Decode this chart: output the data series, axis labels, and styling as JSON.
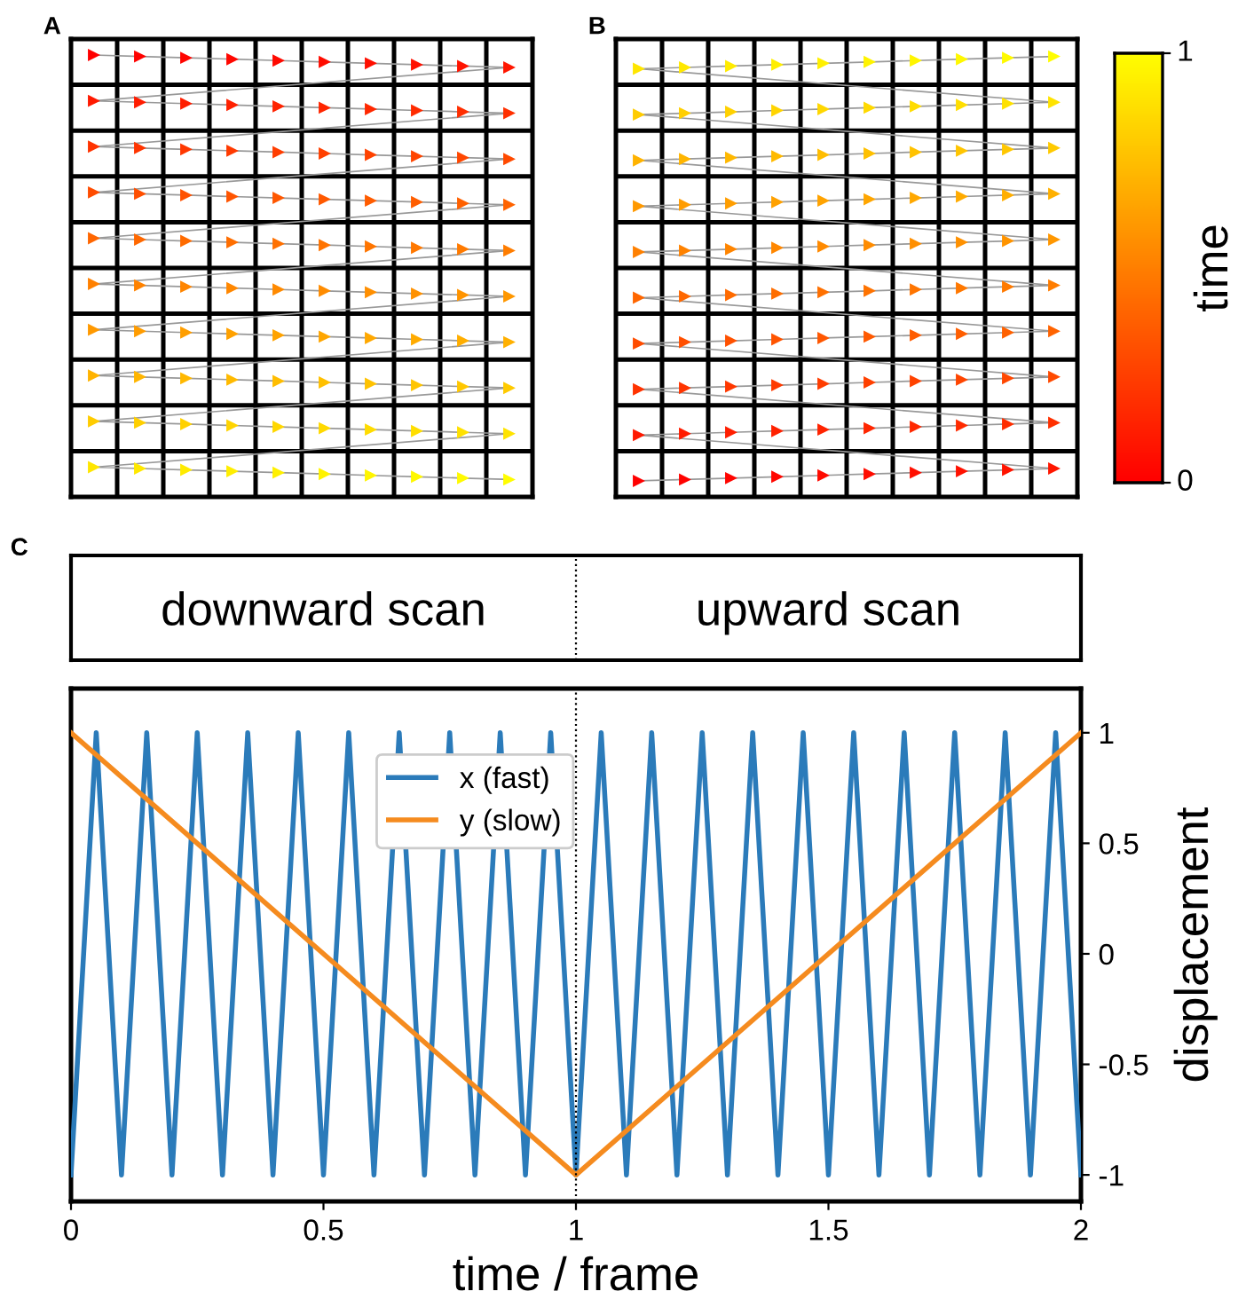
{
  "chart_data": [
    {
      "type": "other",
      "annotations": [
        "A",
        "B",
        "1",
        "0"
      ],
      "clabel": "time"
    },
    {
      "type": "line",
      "title": "C",
      "xlabel": "time / frame",
      "ylabel": "displacement",
      "legend": "top",
      "grid": false,
      "annotations": [
        "downward scan",
        "upward scan"
      ],
      "xlim": [
        0,
        2
      ],
      "xticks": [
        0,
        0.5,
        1,
        1.5,
        2
      ],
      "ylim": [
        -1.12,
        1.2
      ],
      "yticks": [
        {
          "value": -1,
          "label": "-1"
        },
        {
          "value": -0.5,
          "label": "-0.5"
        },
        0,
        0.5,
        1
      ],
      "ref_lines": [
        {
          "axis": "x",
          "value": 1,
          "color": "#000000",
          "line_style": "dotted"
        }
      ],
      "series": [
        {
          "name": "x (fast)",
          "color": "#2b7bba",
          "x": [
            0,
            0.05,
            0.1,
            0.15,
            0.2,
            0.25,
            0.3,
            0.35,
            0.4,
            0.45,
            0.5,
            0.55,
            0.6,
            0.65,
            0.7,
            0.75,
            0.8,
            0.85,
            0.9,
            0.95,
            1,
            1.05,
            1.1,
            1.15,
            1.2,
            1.25,
            1.3,
            1.35,
            1.4,
            1.45,
            1.5,
            1.55,
            1.6,
            1.65,
            1.7,
            1.75,
            1.8,
            1.85,
            1.9,
            1.95,
            2
          ],
          "values": [
            -1,
            1,
            -1,
            1,
            -1,
            1,
            -1,
            1,
            -1,
            1,
            -1,
            1,
            -1,
            1,
            -1,
            1,
            -1,
            1,
            -1,
            1,
            -1,
            1,
            -1,
            1,
            -1,
            1,
            -1,
            1,
            -1,
            1,
            -1,
            1,
            -1,
            1,
            -1,
            1,
            -1,
            1,
            -1,
            1,
            -1
          ]
        },
        {
          "name": "y (slow)",
          "color": "#f58b1f",
          "x": [
            0,
            1,
            2
          ],
          "values": [
            1,
            -1,
            1
          ]
        }
      ]
    }
  ]
}
